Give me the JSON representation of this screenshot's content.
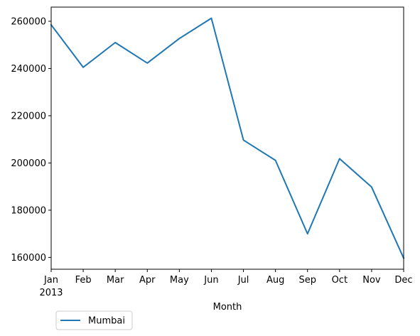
{
  "chart_data": {
    "type": "line",
    "title": "",
    "xlabel": "Month",
    "ylabel": "",
    "categories": [
      "Jan",
      "Feb",
      "Mar",
      "Apr",
      "May",
      "Jun",
      "Jul",
      "Aug",
      "Sep",
      "Oct",
      "Nov",
      "Dec"
    ],
    "year_label": "2013",
    "ylim": [
      155000,
      266000
    ],
    "yticks": [
      160000,
      180000,
      200000,
      220000,
      240000,
      260000
    ],
    "ytick_labels": [
      "160000",
      "180000",
      "200000",
      "220000",
      "240000",
      "260000"
    ],
    "grid": false,
    "legend_position": "lower-left, outside below axes",
    "series": [
      {
        "name": "Mumbai",
        "color": "#1f77b4",
        "values": [
          258500,
          240500,
          251000,
          242300,
          252700,
          261300,
          209700,
          201100,
          170000,
          201800,
          189800,
          159700
        ]
      }
    ]
  }
}
